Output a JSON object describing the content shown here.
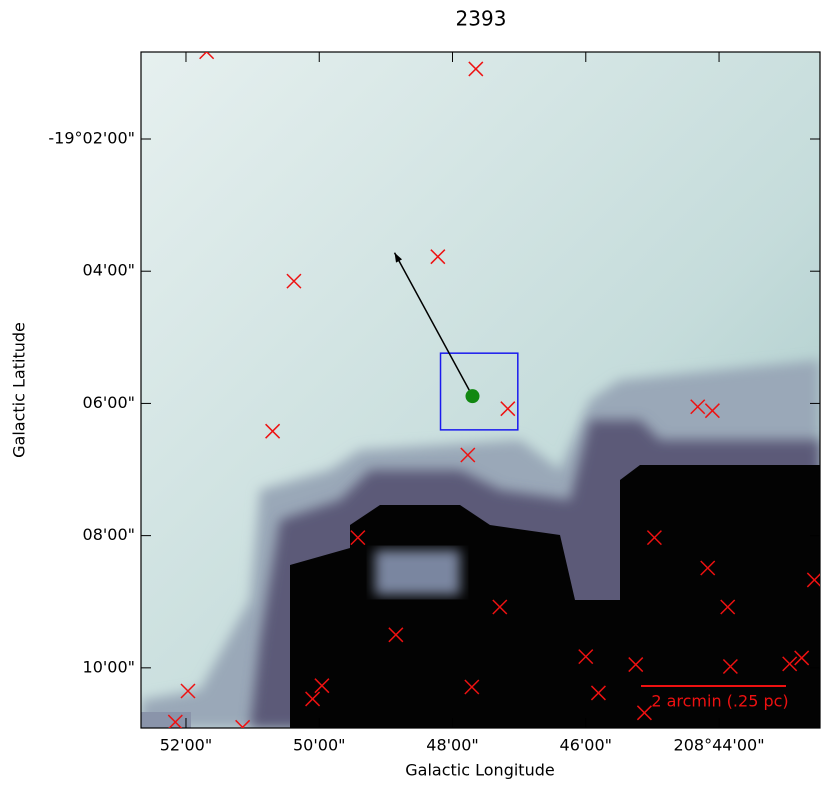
{
  "chart_data": {
    "type": "scatter",
    "title": "2393",
    "x_label": "Galactic Longitude",
    "y_label": "Galactic Latitude",
    "xlim": [
      52.675,
      42.485
    ],
    "xticks": [
      {
        "value": 52,
        "label": "52'00\""
      },
      {
        "value": 50,
        "label": "50'00\""
      },
      {
        "value": 48,
        "label": "48'00\""
      },
      {
        "value": 46,
        "label": "46'00\""
      },
      {
        "value": 44,
        "label": "208°44'00\""
      }
    ],
    "ylim": [
      10.91,
      0.684
    ],
    "yticks": [
      {
        "value": 2,
        "label": "-19°02'00\""
      },
      {
        "value": 4,
        "label": "04'00\""
      },
      {
        "value": 6,
        "label": "06'00\""
      },
      {
        "value": 8,
        "label": "08'00\""
      },
      {
        "value": 10,
        "label": "10'00\""
      }
    ],
    "markers": {
      "color": "#ee1111",
      "x": [
        51.69,
        47.65,
        48.22,
        50.38,
        47.17,
        44.32,
        44.1,
        50.7,
        47.77,
        49.42,
        44.97,
        44.17,
        47.29,
        43.87,
        42.57,
        48.85,
        46.0,
        45.25,
        43.83,
        42.94,
        42.76,
        51.97,
        49.96,
        50.1,
        47.71,
        45.81,
        45.12,
        52.16,
        51.15
      ],
      "y": [
        0.68,
        0.94,
        3.78,
        4.15,
        6.08,
        6.05,
        6.11,
        6.42,
        6.78,
        8.03,
        8.03,
        8.49,
        9.08,
        9.08,
        8.67,
        9.5,
        9.83,
        9.95,
        9.98,
        9.94,
        9.85,
        10.35,
        10.27,
        10.47,
        10.29,
        10.38,
        10.68,
        10.82,
        10.9
      ]
    },
    "source": {
      "color": "#118811",
      "x": 47.7,
      "y": 5.89
    },
    "arrow": {
      "x": [
        47.7,
        48.87
      ],
      "y": [
        5.89,
        3.72
      ]
    },
    "box": {
      "color": "#1a1aee",
      "x": [
        48.18,
        47.02
      ],
      "y": [
        6.4,
        5.24
      ]
    },
    "scale_bar": {
      "label": "2 arcmin (.25 pc)",
      "color": "#ee1111"
    }
  }
}
